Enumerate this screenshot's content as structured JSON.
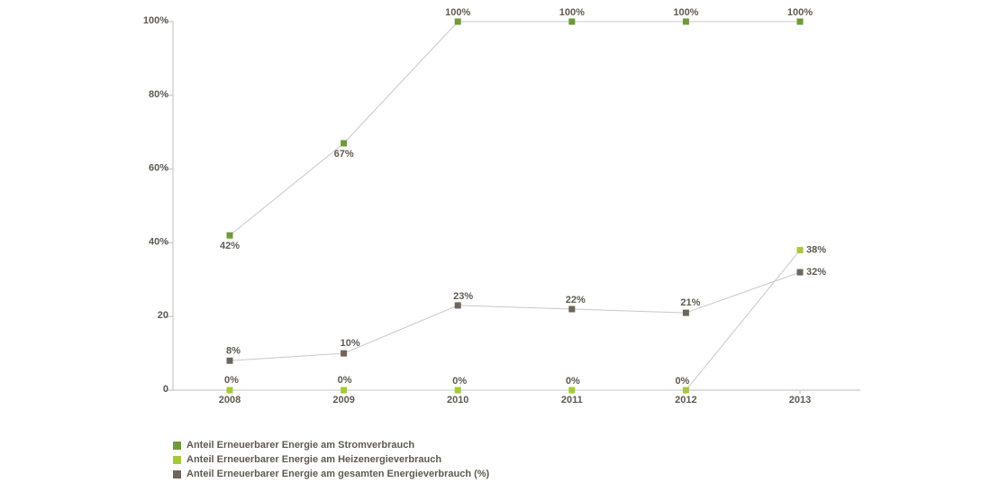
{
  "chart_data": {
    "type": "line",
    "x": [
      "2008",
      "2009",
      "2010",
      "2011",
      "2012",
      "2013"
    ],
    "y_ticks": [
      {
        "value": 0,
        "label": "0"
      },
      {
        "value": 20,
        "label": "20"
      },
      {
        "value": 40,
        "label": "40%"
      },
      {
        "value": 60,
        "label": "60%"
      },
      {
        "value": 80,
        "label": "80%"
      },
      {
        "value": 100,
        "label": "100%"
      }
    ],
    "ylim": [
      0,
      100
    ],
    "grid": false,
    "legend_position": "bottom-left",
    "series": [
      {
        "name": "Anteil Erneuerbarer Energie am Stromverbrauch",
        "color": "#6e9a3a",
        "values": [
          42,
          67,
          100,
          100,
          100,
          100
        ],
        "labels": [
          "42%",
          "67%",
          "100%",
          "100%",
          "100%",
          "100%"
        ]
      },
      {
        "name": "Anteil Erneuerbarer Energie am Heizenergieverbrauch",
        "color": "#a6c93c",
        "values": [
          0,
          0,
          0,
          0,
          0,
          38
        ],
        "labels": [
          "0%",
          "0%",
          "0%",
          "0%",
          "0%",
          "38%"
        ]
      },
      {
        "name": "Anteil Erneuerbarer Energie am gesamten Energieverbrauch (%)",
        "color": "#6f655a",
        "values": [
          8,
          10,
          23,
          22,
          21,
          32
        ],
        "labels": [
          "8%",
          "10%",
          "23%",
          "22%",
          "21%",
          "32%"
        ]
      }
    ]
  }
}
